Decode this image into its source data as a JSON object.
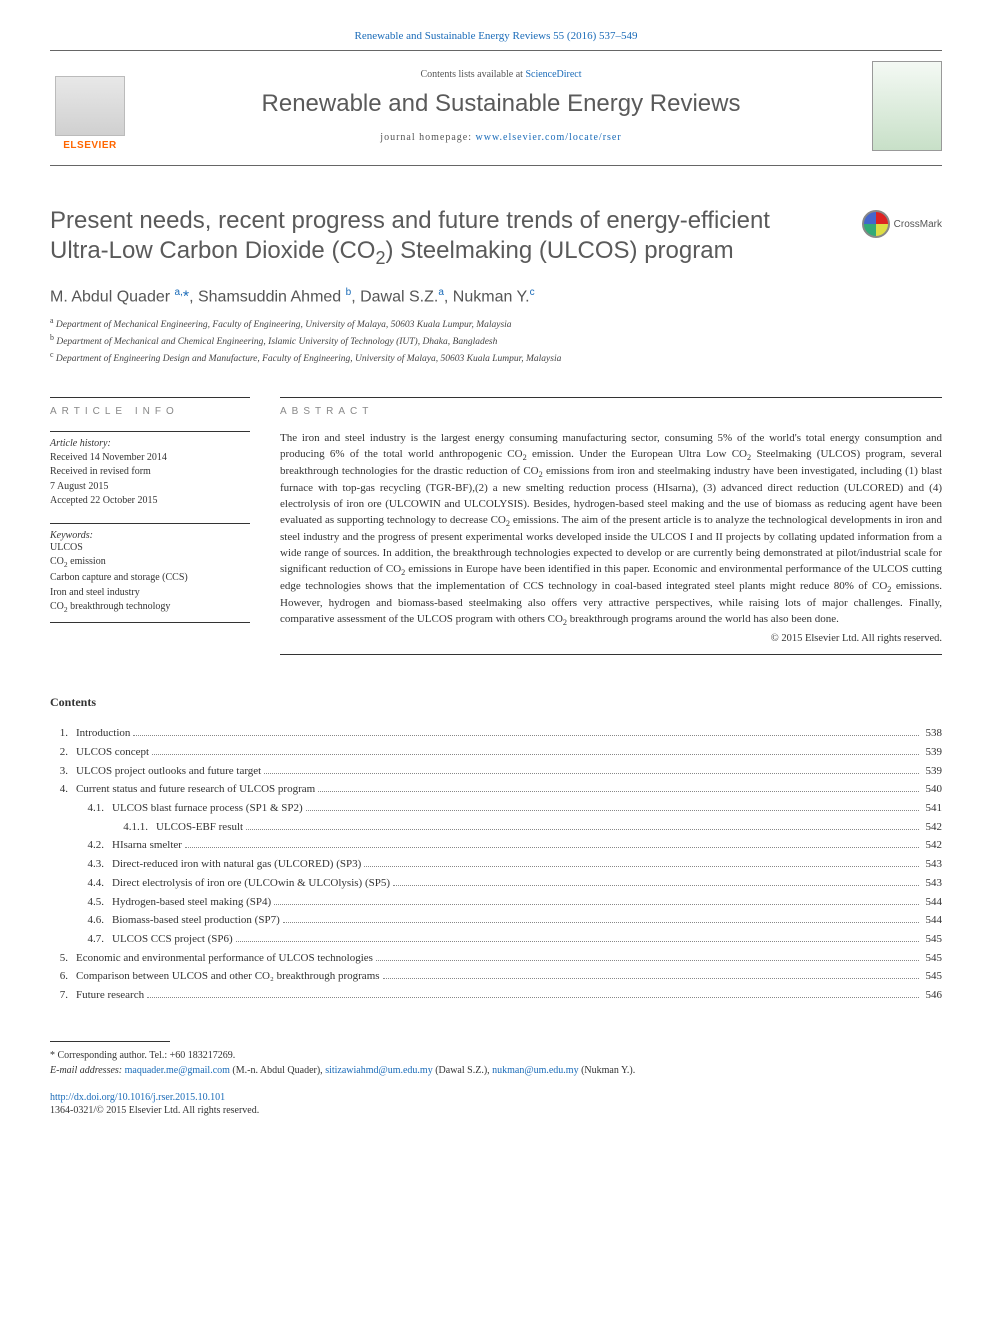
{
  "journal_ref": {
    "text": "Renewable and Sustainable Energy Reviews 55 (2016) 537–549",
    "name": "Renewable and Sustainable Energy Reviews",
    "vol_pages": "55 (2016) 537–549"
  },
  "header": {
    "contents_prefix": "Contents lists available at ",
    "contents_link": "ScienceDirect",
    "journal_name": "Renewable and Sustainable Energy Reviews",
    "homepage_prefix": "journal homepage: ",
    "homepage_link": "www.elsevier.com/locate/rser",
    "elsevier_label": "ELSEVIER"
  },
  "crossmark_label": "CrossMark",
  "article": {
    "title_html": "Present needs, recent progress and future trends of energy-efficient Ultra-Low Carbon Dioxide (CO<sub>2</sub>) Steelmaking (ULCOS) program",
    "authors_html": "M. Abdul Quader <sup>a,</sup><span class=\"star\">*</span>, Shamsuddin Ahmed <sup>b</sup>, Dawal S.Z.<sup>a</sup>, Nukman Y.<sup>c</sup>",
    "affiliations": [
      {
        "sup": "a",
        "text": "Department of Mechanical Engineering, Faculty of Engineering, University of Malaya, 50603 Kuala Lumpur, Malaysia"
      },
      {
        "sup": "b",
        "text": "Department of Mechanical and Chemical Engineering, Islamic University of Technology (IUT), Dhaka, Bangladesh"
      },
      {
        "sup": "c",
        "text": "Department of Engineering Design and Manufacture, Faculty of Engineering, University of Malaya, 50603 Kuala Lumpur, Malaysia"
      }
    ]
  },
  "info": {
    "section": "ARTICLE INFO",
    "history_label": "Article history:",
    "history_lines": [
      "Received 14 November 2014",
      "Received in revised form",
      "7 August 2015",
      "Accepted 22 October 2015"
    ],
    "keywords_label": "Keywords:",
    "keywords_html": [
      "ULCOS",
      "CO<sub>2</sub> emission",
      "Carbon capture and storage (CCS)",
      "Iron and steel industry",
      "CO<sub>2</sub> breakthrough technology"
    ]
  },
  "abstract": {
    "section": "ABSTRACT",
    "body_html": "The iron and steel industry is the largest energy consuming manufacturing sector, consuming 5% of the world's total energy consumption and producing 6% of the total world anthropogenic CO<sub>2</sub> emission. Under the European Ultra Low CO<sub>2</sub> Steelmaking (ULCOS) program, several breakthrough technologies for the drastic reduction of CO<sub>2</sub> emissions from iron and steelmaking industry have been investigated, including (1) blast furnace with top-gas recycling (TGR-BF),(2) a new smelting reduction process (HIsarna), (3) advanced direct reduction (ULCORED) and (4) electrolysis of iron ore (ULCOWIN and ULCOLYSIS). Besides, hydrogen-based steel making and the use of biomass as reducing agent have been evaluated as supporting technology to decrease CO<sub>2</sub> emissions. The aim of the present article is to analyze the technological developments in iron and steel industry and the progress of present experimental works developed inside the ULCOS I and II projects by collating updated information from a wide range of sources. In addition, the breakthrough technologies expected to develop or are currently being demonstrated at pilot/industrial scale for significant reduction of CO<sub>2</sub> emissions in Europe have been identified in this paper. Economic and environmental performance of the ULCOS cutting edge technologies shows that the implementation of CCS technology in coal-based integrated steel plants might reduce 80% of CO<sub>2</sub> emissions. However, hydrogen and biomass-based steelmaking also offers very attractive perspectives, while raising lots of major challenges. Finally, comparative assessment of the ULCOS program with others CO<sub>2</sub> breakthrough programs around the world has also been done.",
    "copyright": "© 2015 Elsevier Ltd. All rights reserved."
  },
  "contents": {
    "heading": "Contents",
    "items": [
      {
        "level": 0,
        "num": "1.",
        "title": "Introduction",
        "page": "538"
      },
      {
        "level": 0,
        "num": "2.",
        "title": "ULCOS concept",
        "page": "539"
      },
      {
        "level": 0,
        "num": "3.",
        "title": "ULCOS project outlooks and future target",
        "page": "539"
      },
      {
        "level": 0,
        "num": "4.",
        "title": "Current status and future research of ULCOS program",
        "page": "540"
      },
      {
        "level": 1,
        "num": "4.1.",
        "title": "ULCOS blast furnace process (SP1 & SP2)",
        "page": "541"
      },
      {
        "level": 2,
        "num": "4.1.1.",
        "title": "ULCOS-EBF result",
        "page": "542"
      },
      {
        "level": 1,
        "num": "4.2.",
        "title": "HIsarna smelter",
        "page": "542"
      },
      {
        "level": 1,
        "num": "4.3.",
        "title": "Direct-reduced iron with natural gas (ULCORED) (SP3)",
        "page": "543"
      },
      {
        "level": 1,
        "num": "4.4.",
        "title": "Direct electrolysis of iron ore (ULCOwin & ULCOlysis) (SP5)",
        "page": "543"
      },
      {
        "level": 1,
        "num": "4.5.",
        "title": "Hydrogen-based steel making (SP4)",
        "page": "544"
      },
      {
        "level": 1,
        "num": "4.6.",
        "title": "Biomass-based steel production (SP7)",
        "page": "544"
      },
      {
        "level": 1,
        "num": "4.7.",
        "title": "ULCOS CCS project (SP6)",
        "page": "545"
      },
      {
        "level": 0,
        "num": "5.",
        "title": "Economic and environmental performance of ULCOS technologies",
        "page": "545"
      },
      {
        "level": 0,
        "num": "6.",
        "title": "Comparison between ULCOS and other CO₂ breakthrough programs",
        "page": "545"
      },
      {
        "level": 0,
        "num": "7.",
        "title": "Future research",
        "page": "546"
      }
    ]
  },
  "footer": {
    "corresponding": "* Corresponding author. Tel.: +60 183217269.",
    "email_prefix": "E-mail addresses: ",
    "emails_html": "<a>maquader.me@gmail.com</a> (M.-n. Abdul Quader), <a>sitizawiahmd@um.edu.my</a> (Dawal S.Z.), <a>nukman@um.edu.my</a> (Nukman Y.).",
    "doi": "http://dx.doi.org/10.1016/j.rser.2015.10.101",
    "issn_line": "1364-0321/© 2015 Elsevier Ltd. All rights reserved."
  },
  "colors": {
    "link": "#1a6bb8",
    "heading_grey": "#5a5a5a",
    "elsevier_orange": "#ff6600",
    "text": "#333333"
  }
}
